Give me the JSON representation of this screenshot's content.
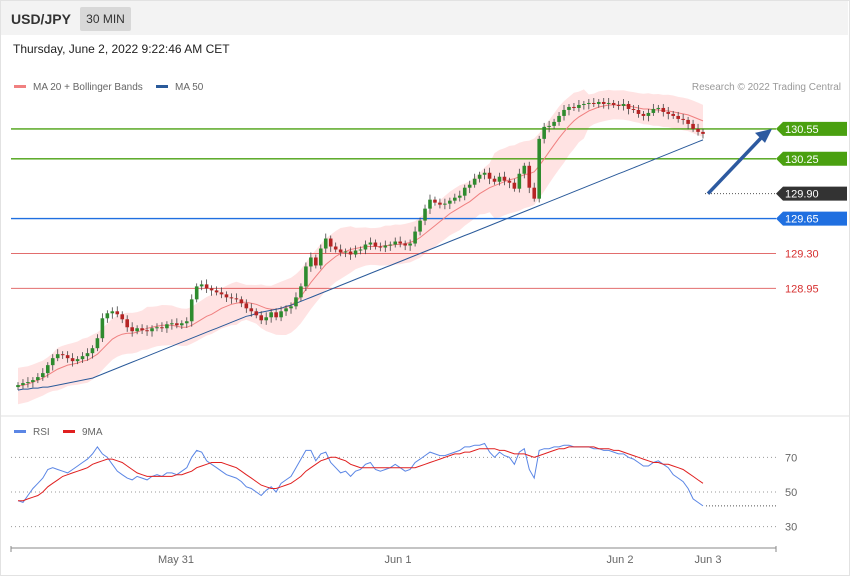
{
  "header": {
    "symbol": "USD/JPY",
    "timeframe": "30 MIN",
    "datetime": "Thursday, June 2, 2022 9:22:46 AM CET"
  },
  "price_panel": {
    "legend": [
      {
        "label": "MA 20 + Bollinger Bands",
        "color": "#f08080"
      },
      {
        "label": "MA 50",
        "color": "#2a5a9a"
      }
    ],
    "credit": "Research © 2022 Trading Central"
  },
  "rsi_panel": {
    "legend": [
      {
        "label": "RSI",
        "color": "#5b86e5"
      },
      {
        "label": "9MA",
        "color": "#e02020"
      }
    ]
  },
  "chart_data": [
    {
      "type": "candlestick",
      "x_tick_labels": [
        "May 31",
        "Jun 1",
        "Jun 2",
        "Jun 3"
      ],
      "ylim": [
        127.75,
        130.9
      ],
      "colors": {
        "up": "#2e8b2e",
        "down": "#b52424",
        "bands": "#ffdede",
        "ma20": "#f08080",
        "ma50": "#2a5a9a"
      },
      "levels": [
        {
          "value": 130.55,
          "label": "130.55",
          "color": "#4aa010",
          "style": "tag"
        },
        {
          "value": 130.25,
          "label": "130.25",
          "color": "#4aa010",
          "style": "tag"
        },
        {
          "value": 129.9,
          "label": "129.90",
          "color": "#333333",
          "style": "tag-dotted"
        },
        {
          "value": 129.65,
          "label": "129.65",
          "color": "#1f6fe0",
          "style": "tag"
        },
        {
          "value": 129.3,
          "label": "129.30",
          "color": "#d63030",
          "style": "text"
        },
        {
          "value": 128.95,
          "label": "128.95",
          "color": "#d63030",
          "style": "text"
        }
      ],
      "forecast_arrow": {
        "from": 129.9,
        "to": 130.55
      },
      "close": [
        127.98,
        128.0,
        128.01,
        128.03,
        128.06,
        128.1,
        128.18,
        128.25,
        128.29,
        128.28,
        128.25,
        128.22,
        128.24,
        128.27,
        128.3,
        128.35,
        128.45,
        128.65,
        128.7,
        128.72,
        128.69,
        128.64,
        128.56,
        128.52,
        128.55,
        128.53,
        128.52,
        128.55,
        128.56,
        128.55,
        128.59,
        128.6,
        128.58,
        128.6,
        128.62,
        128.84,
        128.97,
        128.99,
        128.95,
        128.93,
        128.91,
        128.89,
        128.86,
        128.85,
        128.84,
        128.8,
        128.75,
        128.72,
        128.68,
        128.63,
        128.66,
        128.71,
        128.66,
        128.72,
        128.75,
        128.77,
        128.86,
        128.97,
        129.17,
        129.26,
        129.18,
        129.35,
        129.45,
        129.37,
        129.34,
        129.31,
        129.32,
        129.29,
        129.33,
        129.34,
        129.39,
        129.41,
        129.37,
        129.36,
        129.38,
        129.39,
        129.42,
        129.4,
        129.38,
        129.4,
        129.52,
        129.63,
        129.75,
        129.84,
        129.81,
        129.79,
        129.8,
        129.83,
        129.86,
        129.88,
        129.96,
        129.99,
        130.05,
        130.09,
        130.11,
        130.05,
        130.02,
        130.07,
        130.03,
        130.01,
        129.95,
        130.1,
        130.18,
        129.96,
        129.85,
        130.45,
        130.57,
        130.58,
        130.62,
        130.68,
        130.74,
        130.77,
        130.76,
        130.79,
        130.8,
        130.81,
        130.8,
        130.82,
        130.8,
        130.81,
        130.79,
        130.78,
        130.8,
        130.75,
        130.74,
        130.7,
        130.68,
        130.71,
        130.75,
        130.76,
        130.72,
        130.7,
        130.68,
        130.65,
        130.64,
        130.6,
        130.55,
        130.52,
        130.5
      ],
      "ma20": [
        127.97,
        127.98,
        127.99,
        128.01,
        128.03,
        128.05,
        128.08,
        128.11,
        128.14,
        128.16,
        128.18,
        128.19,
        128.2,
        128.22,
        128.23,
        128.26,
        128.29,
        128.34,
        128.39,
        128.44,
        128.47,
        128.49,
        128.5,
        128.5,
        128.51,
        128.53,
        128.55,
        128.56,
        128.57,
        128.58,
        128.58,
        128.58,
        128.57,
        128.56,
        128.56,
        128.58,
        128.61,
        128.64,
        128.67,
        128.69,
        128.72,
        128.75,
        128.77,
        128.79,
        128.8,
        128.81,
        128.81,
        128.8,
        128.79,
        128.77,
        128.75,
        128.74,
        128.74,
        128.75,
        128.76,
        128.78,
        128.82,
        128.87,
        128.94,
        129.01,
        129.07,
        129.13,
        129.19,
        129.23,
        129.27,
        129.3,
        129.32,
        129.34,
        129.35,
        129.36,
        129.37,
        129.37,
        129.37,
        129.37,
        129.38,
        129.38,
        129.39,
        129.39,
        129.4,
        129.41,
        129.43,
        129.46,
        129.5,
        129.54,
        129.58,
        129.62,
        129.66,
        129.7,
        129.73,
        129.76,
        129.79,
        129.82,
        129.86,
        129.9,
        129.93,
        129.96,
        129.98,
        130.0,
        130.02,
        130.04,
        130.05,
        130.07,
        130.09,
        130.1,
        130.12,
        130.18,
        130.25,
        130.32,
        130.39,
        130.46,
        130.52,
        130.58,
        130.63,
        130.67,
        130.7,
        130.73,
        130.75,
        130.77,
        130.78,
        130.79,
        130.79,
        130.79,
        130.79,
        130.78,
        130.77,
        130.76,
        130.75,
        130.75,
        130.74,
        130.74,
        130.73,
        130.73,
        130.72,
        130.71,
        130.7,
        130.69,
        130.67,
        130.65,
        130.63
      ],
      "ma50": [
        127.93,
        127.94,
        127.94,
        127.95,
        127.95,
        127.96,
        127.96,
        127.97,
        127.98,
        127.99,
        128.0,
        128.01,
        128.02,
        128.03,
        128.04,
        128.05,
        128.07,
        128.09,
        128.11,
        128.13,
        128.15,
        128.17,
        128.19,
        128.21,
        128.23,
        128.25,
        128.27,
        128.29,
        128.31,
        128.33,
        128.35,
        128.37,
        128.39,
        128.41,
        128.43,
        128.45,
        128.47,
        128.49,
        128.51,
        128.53,
        128.55,
        128.57,
        128.59,
        128.61,
        128.63,
        128.65,
        128.67,
        128.68,
        128.7,
        128.71,
        128.72,
        128.73,
        128.74,
        128.75,
        128.77,
        128.78,
        128.8,
        128.82,
        128.84,
        128.86,
        128.88,
        128.9,
        128.92,
        128.94,
        128.96,
        128.98,
        129.0,
        129.02,
        129.04,
        129.06,
        129.08,
        129.1,
        129.12,
        129.14,
        129.16,
        129.18,
        129.2,
        129.22,
        129.24,
        129.26,
        129.28,
        129.3,
        129.32,
        129.34,
        129.36,
        129.38,
        129.4,
        129.42,
        129.44,
        129.46,
        129.48,
        129.5,
        129.52,
        129.54,
        129.56,
        129.58,
        129.6,
        129.62,
        129.64,
        129.66,
        129.68,
        129.7,
        129.72,
        129.74,
        129.76,
        129.78,
        129.8,
        129.82,
        129.84,
        129.86,
        129.88,
        129.9,
        129.92,
        129.94,
        129.96,
        129.98,
        130.0,
        130.02,
        130.04,
        130.06,
        130.08,
        130.1,
        130.12,
        130.14,
        130.16,
        130.18,
        130.2,
        130.22,
        130.24,
        130.26,
        130.28,
        130.3,
        130.32,
        130.34,
        130.36,
        130.38,
        130.4,
        130.42,
        130.44
      ]
    },
    {
      "type": "line",
      "name": "RSI",
      "y_tick_labels": [
        "70",
        "50",
        "30"
      ],
      "ylim": [
        20,
        80
      ],
      "rsi": [
        45,
        44,
        48,
        52,
        55,
        58,
        63,
        64,
        63,
        62,
        61,
        63,
        65,
        67,
        69,
        72,
        76,
        72,
        70,
        66,
        62,
        60,
        58,
        57,
        59,
        58,
        57,
        59,
        60,
        59,
        61,
        61,
        60,
        62,
        64,
        70,
        74,
        73,
        68,
        66,
        64,
        62,
        60,
        59,
        58,
        56,
        53,
        52,
        50,
        48,
        51,
        53,
        50,
        55,
        57,
        59,
        64,
        69,
        74,
        74,
        68,
        72,
        73,
        67,
        64,
        61,
        62,
        59,
        62,
        63,
        66,
        67,
        63,
        62,
        63,
        64,
        66,
        64,
        62,
        63,
        67,
        69,
        71,
        73,
        72,
        71,
        71,
        72,
        73,
        74,
        76,
        76,
        77,
        77,
        78,
        73,
        70,
        73,
        71,
        70,
        66,
        73,
        75,
        63,
        58,
        74,
        75,
        75,
        76,
        76,
        77,
        77,
        76,
        76,
        76,
        76,
        75,
        75,
        74,
        74,
        73,
        72,
        72,
        70,
        69,
        67,
        65,
        65,
        67,
        68,
        66,
        64,
        60,
        58,
        56,
        52,
        46,
        44,
        42
      ],
      "ma9": [
        45,
        45,
        46,
        47,
        48,
        50,
        53,
        55,
        57,
        59,
        60,
        61,
        62,
        63,
        64,
        66,
        67,
        68,
        69,
        69,
        68,
        67,
        65,
        63,
        61,
        60,
        59,
        59,
        59,
        59,
        59,
        59,
        60,
        60,
        61,
        62,
        64,
        65,
        66,
        67,
        67,
        67,
        66,
        65,
        64,
        62,
        60,
        58,
        56,
        54,
        53,
        52,
        52,
        53,
        54,
        55,
        57,
        59,
        62,
        64,
        66,
        68,
        69,
        70,
        70,
        69,
        68,
        66,
        65,
        64,
        64,
        64,
        64,
        64,
        64,
        64,
        64,
        64,
        64,
        64,
        64,
        65,
        66,
        67,
        68,
        69,
        70,
        71,
        72,
        72,
        73,
        73,
        74,
        75,
        75,
        75,
        75,
        74,
        74,
        73,
        72,
        72,
        72,
        71,
        70,
        71,
        72,
        73,
        74,
        75,
        75,
        76,
        76,
        76,
        76,
        76,
        76,
        75,
        75,
        75,
        74,
        74,
        73,
        72,
        71,
        70,
        69,
        68,
        67,
        67,
        66,
        66,
        65,
        64,
        63,
        61,
        59,
        57,
        55
      ]
    }
  ]
}
